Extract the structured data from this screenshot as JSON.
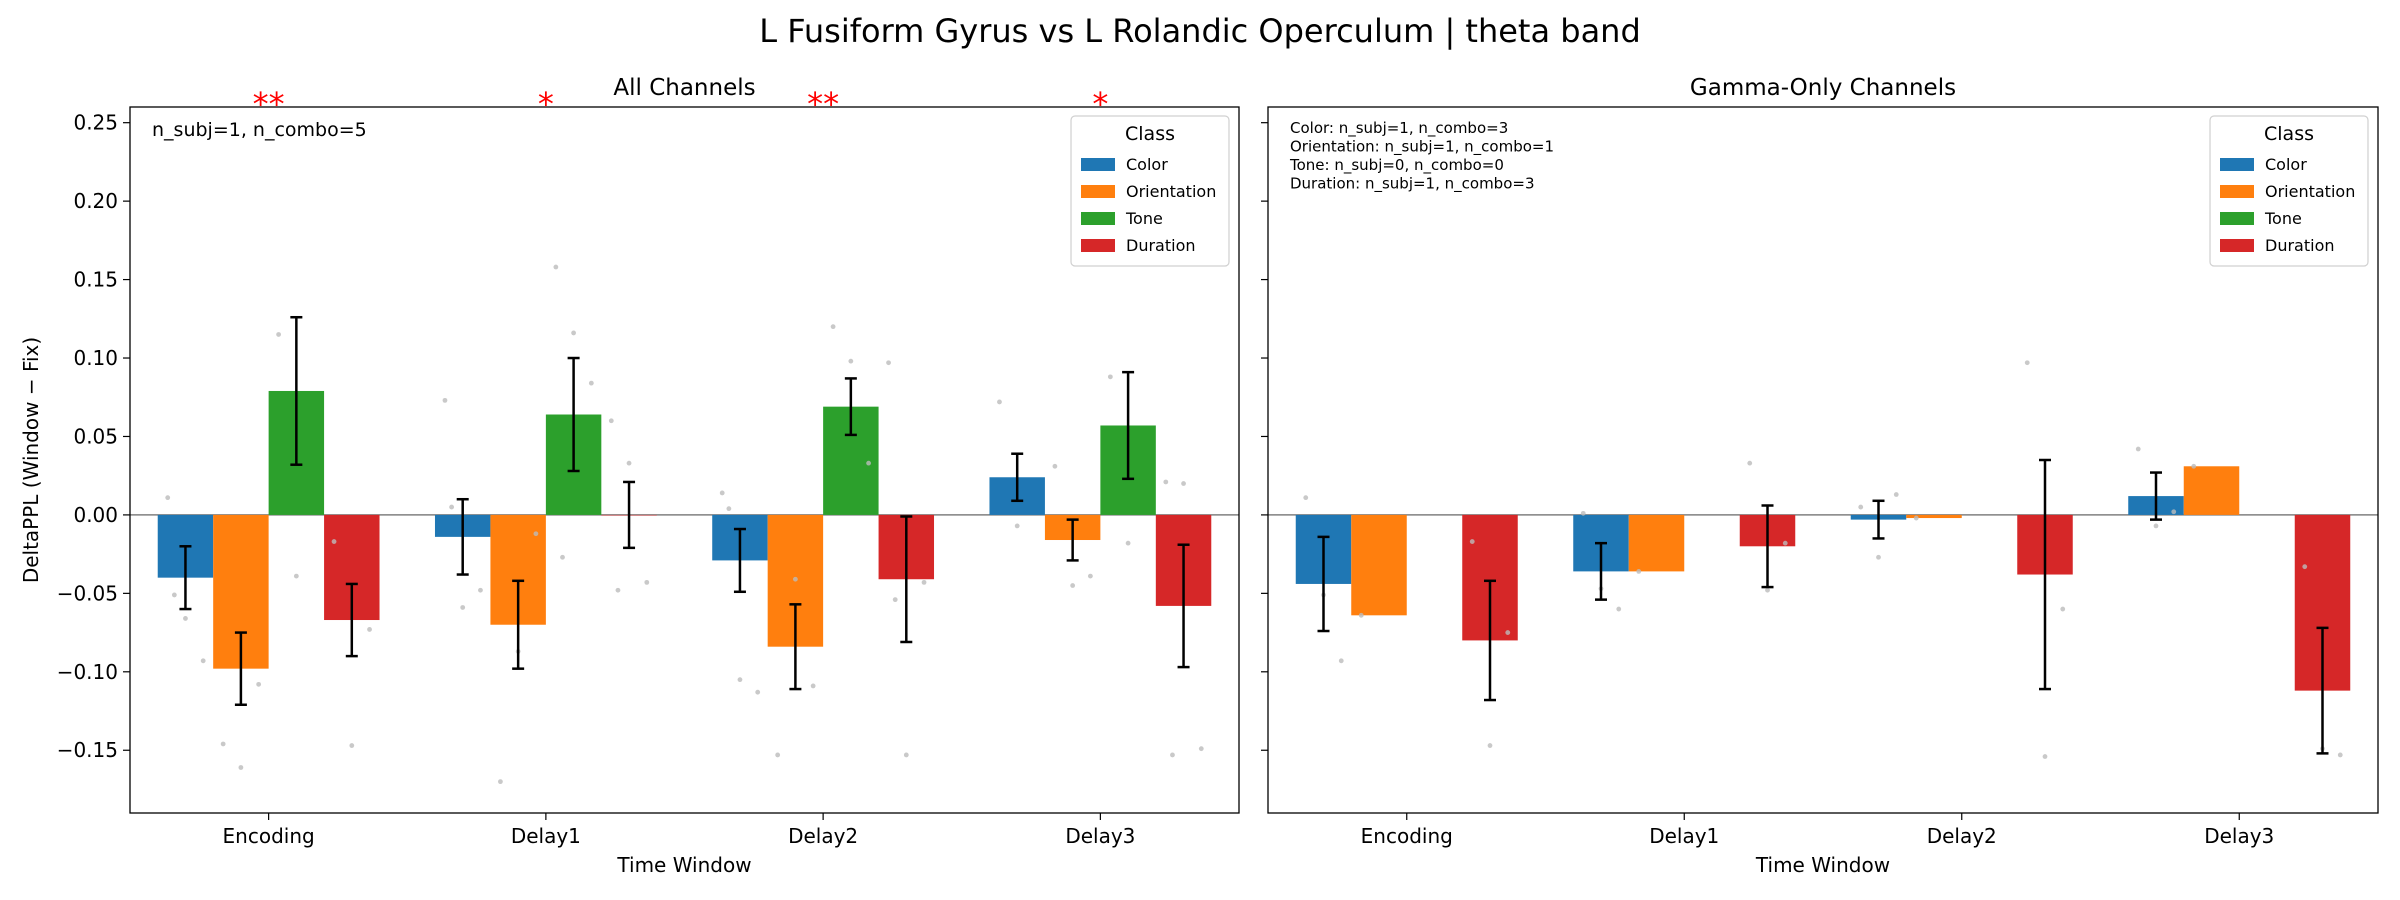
{
  "figure_title": "L Fusiform Gyrus vs L Rolandic Operculum  |  theta band",
  "legend_title": "Class",
  "colors": {
    "Color": "#1f77b4",
    "Orientation": "#ff7f0e",
    "Tone": "#2ca02c",
    "Duration": "#d62728",
    "significance": "#ff0000",
    "dots": "#bbbbbb"
  },
  "chart_data": [
    {
      "type": "bar",
      "title": "All Channels",
      "xlabel": "Time Window",
      "ylabel": "DeltaPPL (Window − Fix)",
      "ylim": [
        -0.19,
        0.26
      ],
      "yticks": [
        -0.15,
        -0.1,
        -0.05,
        0.0,
        0.05,
        0.1,
        0.15,
        0.2,
        0.25
      ],
      "ytick_labels": [
        "−0.15",
        "−0.10",
        "−0.05",
        "0.00",
        "0.05",
        "0.10",
        "0.15",
        "0.20",
        "0.25"
      ],
      "categories": [
        "Encoding",
        "Delay1",
        "Delay2",
        "Delay3"
      ],
      "series": [
        {
          "name": "Color",
          "values": [
            -0.04,
            -0.014,
            -0.029,
            0.024
          ],
          "err": [
            0.02,
            0.024,
            0.02,
            0.015
          ]
        },
        {
          "name": "Orientation",
          "values": [
            -0.098,
            -0.07,
            -0.084,
            -0.016
          ],
          "err": [
            0.023,
            0.028,
            0.027,
            0.013
          ]
        },
        {
          "name": "Tone",
          "values": [
            0.079,
            0.064,
            0.069,
            0.057
          ],
          "err": [
            0.047,
            0.036,
            0.018,
            0.034
          ]
        },
        {
          "name": "Duration",
          "values": [
            -0.067,
            0.0,
            -0.041,
            -0.058
          ],
          "err": [
            0.023,
            0.021,
            0.04,
            0.039
          ]
        }
      ],
      "significance": [
        "**",
        "*",
        "**",
        "*"
      ],
      "annotation": "n_subj=1, n_combo=5",
      "annotation_size": "normal",
      "legend_position": "upper right",
      "points": [
        {
          "cat": 0,
          "ser": 0,
          "y": [
            0.011,
            -0.066,
            -0.093,
            -0.051
          ]
        },
        {
          "cat": 0,
          "ser": 1,
          "y": [
            -0.146,
            -0.161,
            -0.108
          ]
        },
        {
          "cat": 0,
          "ser": 2,
          "y": [
            0.115,
            -0.039
          ]
        },
        {
          "cat": 0,
          "ser": 3,
          "y": [
            -0.017,
            -0.147,
            -0.073
          ]
        },
        {
          "cat": 1,
          "ser": 0,
          "y": [
            0.073,
            -0.059,
            -0.048,
            0.005
          ]
        },
        {
          "cat": 1,
          "ser": 1,
          "y": [
            -0.17,
            -0.087,
            -0.012
          ]
        },
        {
          "cat": 1,
          "ser": 2,
          "y": [
            0.158,
            0.116,
            0.084,
            -0.027
          ]
        },
        {
          "cat": 1,
          "ser": 3,
          "y": [
            0.06,
            0.033,
            -0.043,
            -0.048
          ]
        },
        {
          "cat": 2,
          "ser": 0,
          "y": [
            0.014,
            -0.105,
            -0.113,
            0.004
          ]
        },
        {
          "cat": 2,
          "ser": 1,
          "y": [
            -0.153,
            -0.041,
            -0.109
          ]
        },
        {
          "cat": 2,
          "ser": 2,
          "y": [
            0.12,
            0.098,
            0.033
          ]
        },
        {
          "cat": 2,
          "ser": 3,
          "y": [
            0.097,
            -0.153,
            -0.043,
            -0.054
          ]
        },
        {
          "cat": 3,
          "ser": 0,
          "y": [
            0.072,
            -0.007
          ]
        },
        {
          "cat": 3,
          "ser": 1,
          "y": [
            0.031,
            -0.045,
            -0.039
          ]
        },
        {
          "cat": 3,
          "ser": 2,
          "y": [
            0.088,
            -0.018
          ]
        },
        {
          "cat": 3,
          "ser": 3,
          "y": [
            0.021,
            0.02,
            -0.149,
            -0.153
          ]
        }
      ]
    },
    {
      "type": "bar",
      "title": "Gamma-Only Channels",
      "xlabel": "Time Window",
      "ylim": [
        -0.19,
        0.26
      ],
      "categories": [
        "Encoding",
        "Delay1",
        "Delay2",
        "Delay3"
      ],
      "series": [
        {
          "name": "Color",
          "values": [
            -0.044,
            -0.036,
            -0.003,
            0.012
          ],
          "err": [
            0.03,
            0.018,
            0.012,
            0.015
          ]
        },
        {
          "name": "Orientation",
          "values": [
            -0.064,
            -0.036,
            -0.002,
            0.031
          ],
          "err": [
            0,
            0,
            0,
            0
          ]
        },
        {
          "name": "Tone",
          "values": [
            null,
            null,
            null,
            null
          ],
          "err": [
            0,
            0,
            0,
            0
          ]
        },
        {
          "name": "Duration",
          "values": [
            -0.08,
            -0.02,
            -0.038,
            -0.112
          ],
          "err": [
            0.038,
            0.026,
            0.073,
            0.04
          ]
        }
      ],
      "significance": [
        "",
        "",
        "",
        ""
      ],
      "annotation": "Color: n_subj=1, n_combo=3\nOrientation: n_subj=1, n_combo=1\nTone: n_subj=0, n_combo=0\nDuration: n_subj=1, n_combo=3",
      "annotation_size": "small",
      "legend_position": "upper right",
      "points": [
        {
          "cat": 0,
          "ser": 0,
          "y": [
            0.011,
            -0.051,
            -0.093
          ]
        },
        {
          "cat": 0,
          "ser": 1,
          "y": [
            -0.064
          ]
        },
        {
          "cat": 0,
          "ser": 3,
          "y": [
            -0.017,
            -0.147,
            -0.075
          ]
        },
        {
          "cat": 1,
          "ser": 0,
          "y": [
            0.001,
            -0.047,
            -0.06
          ]
        },
        {
          "cat": 1,
          "ser": 1,
          "y": [
            -0.036
          ]
        },
        {
          "cat": 1,
          "ser": 3,
          "y": [
            0.033,
            -0.048,
            -0.018
          ]
        },
        {
          "cat": 2,
          "ser": 0,
          "y": [
            0.005,
            -0.027,
            0.013
          ]
        },
        {
          "cat": 2,
          "ser": 1,
          "y": [
            -0.002
          ]
        },
        {
          "cat": 2,
          "ser": 3,
          "y": [
            0.097,
            -0.154,
            -0.06
          ]
        },
        {
          "cat": 3,
          "ser": 0,
          "y": [
            0.042,
            -0.007,
            0.002
          ]
        },
        {
          "cat": 3,
          "ser": 1,
          "y": [
            0.031
          ]
        },
        {
          "cat": 3,
          "ser": 3,
          "y": [
            -0.033,
            -0.149,
            -0.153
          ]
        }
      ]
    }
  ]
}
